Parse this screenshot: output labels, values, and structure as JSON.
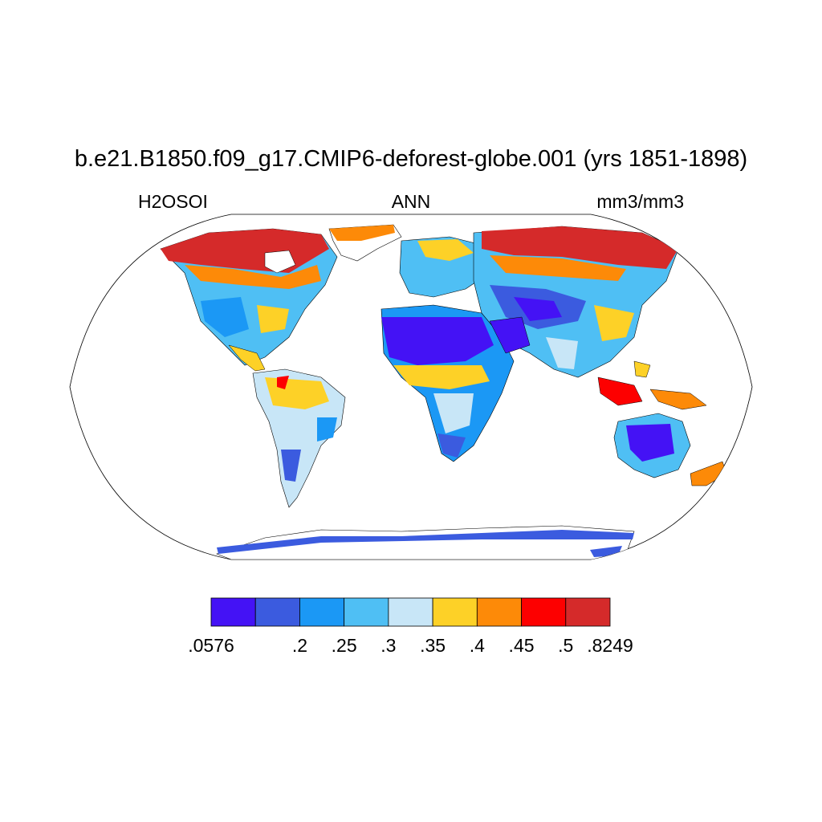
{
  "title": "b.e21.B1850.f09_g17.CMIP6-deforest-globe.001 (yrs 1851-1898)",
  "subtitle": {
    "left": "H2OSOI",
    "center": "ANN",
    "right": "mm3/mm3"
  },
  "map": {
    "projection": "robinson",
    "variable": "H2OSOI",
    "season": "ANN",
    "units": "mm3/mm3",
    "ocean_color": "#ffffff",
    "coastline_color": "#000000"
  },
  "colorbar": {
    "colors": [
      "#4412f5",
      "#3b5bdf",
      "#1b98f5",
      "#4fbff4",
      "#c8e6f7",
      "#fdd127",
      "#fd8a08",
      "#fd0000",
      "#d52a2a"
    ],
    "labels": [
      ".0576",
      ".2",
      ".25",
      ".3",
      ".35",
      ".4",
      ".45",
      ".5",
      ".8249"
    ],
    "label_positions": [
      0,
      2,
      3,
      4,
      5,
      6,
      7,
      8,
      9
    ]
  }
}
